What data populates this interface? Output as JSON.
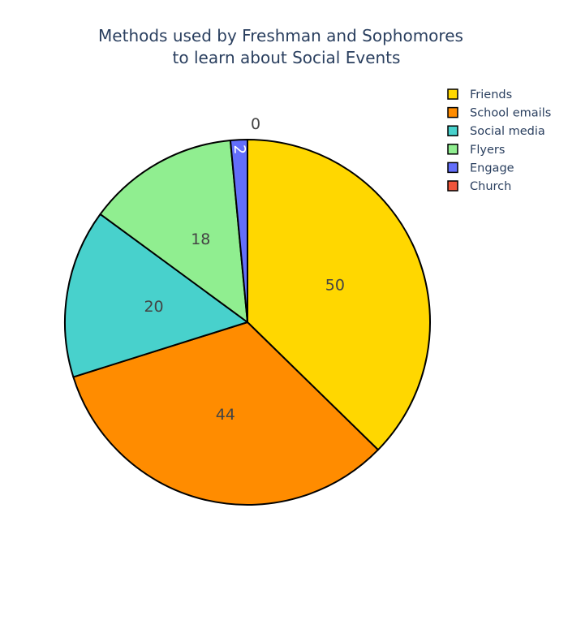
{
  "chart_data": {
    "type": "pie",
    "title_lines": [
      "Methods used by Freshman and Sophomores",
      "to learn about Social Events"
    ],
    "labels": [
      "Friends",
      "School emails",
      "Social media",
      "Flyers",
      "Engage",
      "Church"
    ],
    "values": [
      50,
      44,
      20,
      18,
      2,
      0
    ],
    "colors": [
      "#FFD700",
      "#FF8C00",
      "#48D1CC",
      "#90EE90",
      "#636EFA",
      "#EF553B"
    ],
    "label_colors": [
      "#444444",
      "#444444",
      "#444444",
      "#444444",
      "#ffffff",
      "#444444"
    ],
    "direction": "clockwise",
    "rotation_start": "top",
    "legend_position": "top-right",
    "slice_outline_color": "#000000"
  }
}
